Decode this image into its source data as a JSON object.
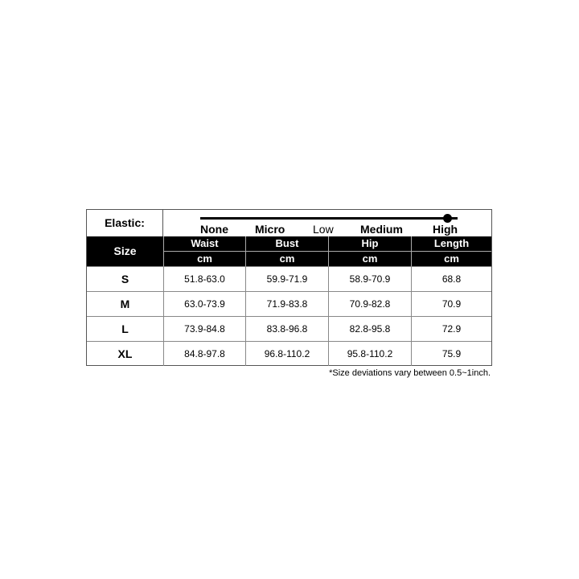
{
  "elastic": {
    "label": "Elastic:",
    "levels": [
      "None",
      "Micro",
      "Low",
      "Medium",
      "High"
    ],
    "selected": "High"
  },
  "header": {
    "size_label": "Size",
    "columns": [
      "Waist",
      "Bust",
      "Hip",
      "Length"
    ],
    "unit": "cm"
  },
  "rows": [
    {
      "size": "S",
      "values": [
        "51.8-63.0",
        "59.9-71.9",
        "58.9-70.9",
        "68.8"
      ]
    },
    {
      "size": "M",
      "values": [
        "63.0-73.9",
        "71.9-83.8",
        "70.9-82.8",
        "70.9"
      ]
    },
    {
      "size": "L",
      "values": [
        "73.9-84.8",
        "83.8-96.8",
        "82.8-95.8",
        "72.9"
      ]
    },
    {
      "size": "XL",
      "values": [
        "84.8-97.8",
        "96.8-110.2",
        "95.8-110.2",
        "75.9"
      ]
    }
  ],
  "note": "*Size deviations vary between 0.5~1inch."
}
